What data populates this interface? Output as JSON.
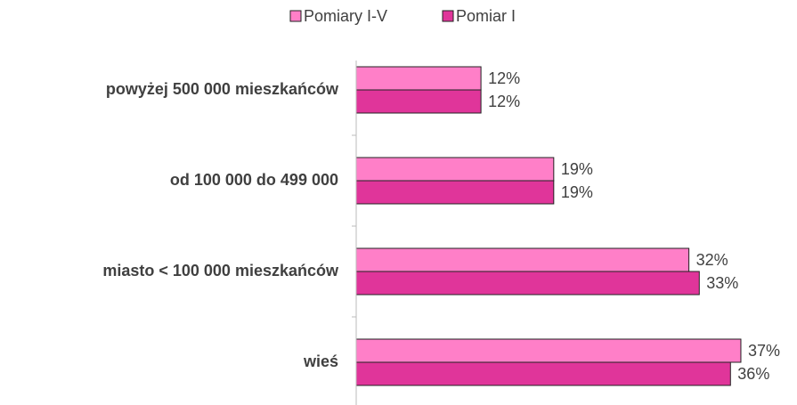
{
  "chart_data": {
    "type": "hbar",
    "categories": [
      "powyżej 500 000 mieszkańców",
      "od 100 000 do 499 000",
      "miasto <  100 000 mieszkańców",
      "wieś"
    ],
    "series": [
      {
        "name": "Pomiary I-V",
        "color": "#ff7fc8",
        "values": [
          12,
          19,
          32,
          37
        ],
        "value_labels": [
          "12%",
          "19%",
          "32%",
          "37%"
        ]
      },
      {
        "name": "Pomiar I",
        "color": "#e0359a",
        "values": [
          12,
          19,
          33,
          36
        ],
        "value_labels": [
          "12%",
          "19%",
          "33%",
          "36%"
        ]
      }
    ],
    "xlim": [
      0,
      40
    ],
    "legend": "top"
  }
}
